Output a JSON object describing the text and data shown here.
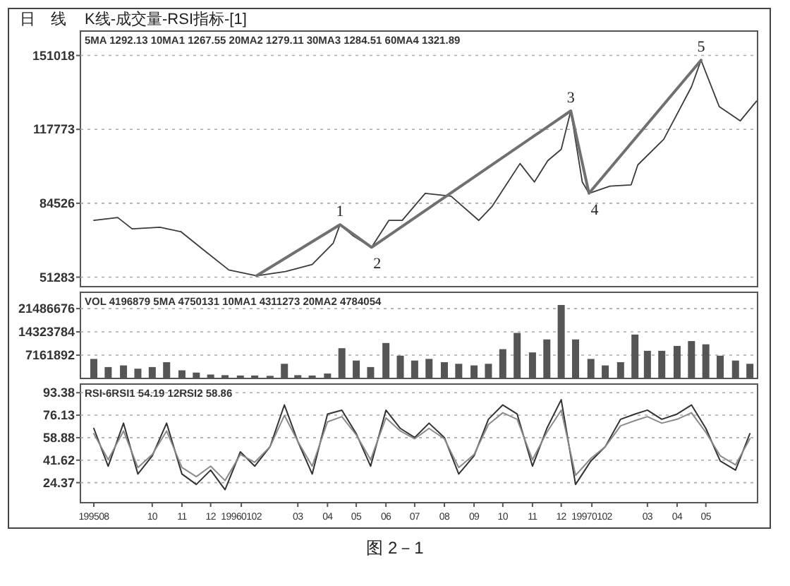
{
  "chart_data": [
    {
      "type": "line",
      "title": "日　线",
      "subtitle": "K线-成交量-RSI指标-[1]",
      "xlim": [
        "1995-07-18",
        "1997-06-24"
      ],
      "ylim": [
        47000,
        162000
      ],
      "yticks": [
        51283,
        84526,
        117773,
        151018
      ],
      "tick_labels": "y",
      "grid": "y",
      "series": [
        {
          "color": "#3a3a3a",
          "x": [
            "1995-08-01",
            "1995-08-26",
            "1995-09-10",
            "1995-10-09",
            "1995-10-31",
            "1995-11-22",
            "1995-12-20",
            "1996-01-18",
            "1996-02-17",
            "1996-03-16",
            "1996-04-07",
            "1996-04-14",
            "1996-04-28",
            "1996-05-17",
            "1996-06-04",
            "1996-06-18",
            "1996-07-12",
            "1996-08-08",
            "1996-09-06",
            "1996-09-20",
            "1996-10-19",
            "1996-11-03",
            "1996-11-17",
            "1996-12-01",
            "1996-12-11",
            "1996-12-23",
            "1996-12-30",
            "1997-01-21",
            "1997-02-12",
            "1997-02-19",
            "1997-03-18",
            "1997-04-16",
            "1997-04-26",
            "1997-05-15",
            "1997-06-06",
            "1997-06-23"
          ],
          "values": [
            76800,
            78100,
            73000,
            73700,
            71700,
            64100,
            54500,
            51900,
            53800,
            57000,
            66600,
            74900,
            69800,
            64700,
            76800,
            76800,
            89000,
            87700,
            76800,
            83200,
            102400,
            94100,
            103700,
            108800,
            126100,
            94100,
            89000,
            92200,
            92800,
            101800,
            113300,
            136900,
            148900,
            128000,
            121600,
            130500
          ]
        },
        {
          "color": "#707070",
          "x": [
            "1996-01-18",
            "1996-04-14",
            "1996-05-17",
            "1996-12-11",
            "1996-12-30",
            "1997-04-26"
          ],
          "values": [
            51900,
            74900,
            64700,
            126100,
            89000,
            148900
          ]
        }
      ],
      "annotations": [
        "5MA 1292.13  10MA1 1267.55  20MA2 1279.11  30MA3 1284.51  60MA4 1321.89",
        {
          "text": "1",
          "x": "1996-04-14",
          "y": 74900
        },
        {
          "text": "2",
          "x": "1996-05-17",
          "y": 64700
        },
        {
          "text": "3",
          "x": "1996-12-11",
          "y": 126100
        },
        {
          "text": "4",
          "x": "1996-12-30",
          "y": 89000
        },
        {
          "text": "5",
          "x": "1997-04-26",
          "y": 148900
        }
      ]
    },
    {
      "type": "bar",
      "xlim": [
        "1995-07-18",
        "1997-06-24"
      ],
      "ylim": [
        0,
        26500000
      ],
      "yticks": [
        7161892,
        14323784,
        21486676
      ],
      "tick_labels": "y",
      "grid": "y",
      "color": "#555555",
      "x": [
        "1995-08-01",
        "1995-08-16",
        "1995-09-01",
        "1995-09-16",
        "1995-10-01",
        "1995-10-16",
        "1995-11-01",
        "1995-11-16",
        "1995-12-01",
        "1995-12-16",
        "1996-01-01",
        "1996-01-16",
        "1996-02-01",
        "1996-02-16",
        "1996-03-01",
        "1996-03-16",
        "1996-04-01",
        "1996-04-16",
        "1996-05-01",
        "1996-05-16",
        "1996-06-01",
        "1996-06-16",
        "1996-07-01",
        "1996-07-16",
        "1996-08-01",
        "1996-08-16",
        "1996-09-01",
        "1996-09-16",
        "1996-10-01",
        "1996-10-16",
        "1996-11-01",
        "1996-11-16",
        "1996-12-01",
        "1996-12-16",
        "1997-01-01",
        "1997-01-16",
        "1997-02-01",
        "1997-02-16",
        "1997-03-01",
        "1997-03-16",
        "1997-04-01",
        "1997-04-16",
        "1997-05-01",
        "1997-05-16",
        "1997-06-01",
        "1997-06-16"
      ],
      "values": [
        6000000,
        3500000,
        4000000,
        3000000,
        3500000,
        5000000,
        2500000,
        1800000,
        1200000,
        1000000,
        900000,
        900000,
        800000,
        4500000,
        1000000,
        900000,
        1500000,
        9300000,
        5500000,
        3500000,
        10900000,
        7000000,
        5500000,
        6000000,
        5000000,
        4500000,
        4000000,
        4500000,
        9000000,
        14000000,
        8000000,
        12000000,
        22600000,
        12000000,
        6000000,
        4000000,
        5000000,
        13500000,
        8500000,
        8500000,
        10000000,
        11500000,
        10500000,
        7000000,
        5500000,
        4500000
      ],
      "annotations": [
        "VOL 4196879  5MA 4750131  10MA1 4311273  20MA2 4784054"
      ]
    },
    {
      "type": "line",
      "xlim": [
        "1995-07-18",
        "1997-06-24"
      ],
      "ylim": [
        9,
        100
      ],
      "yticks": [
        24.37,
        41.62,
        58.88,
        76.13,
        93.38
      ],
      "grid": "y",
      "xticks": [
        {
          "value": "1995-08-01",
          "label": "199508"
        },
        {
          "value": "1995-10-01",
          "label": "10"
        },
        {
          "value": "1995-11-01",
          "label": "11"
        },
        {
          "value": "1995-12-01",
          "label": "12"
        },
        {
          "value": "1996-01-02",
          "label": "19960102"
        },
        {
          "value": "1996-03-01",
          "label": "03"
        },
        {
          "value": "1996-04-01",
          "label": "04"
        },
        {
          "value": "1996-05-01",
          "label": "05"
        },
        {
          "value": "1996-06-01",
          "label": "06"
        },
        {
          "value": "1996-07-01",
          "label": "07"
        },
        {
          "value": "1996-08-01",
          "label": "08"
        },
        {
          "value": "1996-09-01",
          "label": "09"
        },
        {
          "value": "1996-10-01",
          "label": "10"
        },
        {
          "value": "1996-11-01",
          "label": "11"
        },
        {
          "value": "1996-12-01",
          "label": "12"
        },
        {
          "value": "1997-01-02",
          "label": "19970102"
        },
        {
          "value": "1997-03-01",
          "label": "03"
        },
        {
          "value": "1997-04-01",
          "label": "04"
        },
        {
          "value": "1997-05-01",
          "label": "05"
        }
      ],
      "x": [
        "1995-08-01",
        "1995-08-16",
        "1995-09-01",
        "1995-09-16",
        "1995-10-01",
        "1995-10-16",
        "1995-11-01",
        "1995-11-16",
        "1995-12-01",
        "1995-12-16",
        "1996-01-01",
        "1996-01-16",
        "1996-02-01",
        "1996-02-16",
        "1996-03-01",
        "1996-03-16",
        "1996-04-01",
        "1996-04-16",
        "1996-05-01",
        "1996-05-16",
        "1996-06-01",
        "1996-06-16",
        "1996-07-01",
        "1996-07-16",
        "1996-08-01",
        "1996-08-16",
        "1996-09-01",
        "1996-09-16",
        "1996-10-01",
        "1996-10-16",
        "1996-11-01",
        "1996-11-16",
        "1996-12-01",
        "1996-12-16",
        "1997-01-01",
        "1997-01-16",
        "1997-02-01",
        "1997-02-16",
        "1997-03-01",
        "1997-03-16",
        "1997-04-01",
        "1997-04-16",
        "1997-05-01",
        "1997-05-16",
        "1997-06-01",
        "1997-06-16"
      ],
      "series": [
        {
          "color": "#333333",
          "values": [
            66,
            37,
            70,
            31,
            45,
            70,
            31,
            23,
            34,
            19,
            48,
            37,
            52,
            84,
            56,
            31,
            77,
            80,
            62,
            37,
            80,
            66,
            59,
            70,
            59,
            31,
            45,
            73,
            84,
            77,
            37,
            66,
            88,
            23,
            41,
            52,
            73,
            77,
            80,
            73,
            77,
            84,
            66,
            41,
            34,
            62
          ]
        },
        {
          "color": "#8a8a8a",
          "values": [
            62,
            42,
            64,
            36,
            46,
            64,
            36,
            29,
            37,
            26,
            46,
            40,
            52,
            76,
            56,
            37,
            71,
            75,
            61,
            42,
            74,
            64,
            58,
            66,
            58,
            36,
            46,
            69,
            78,
            73,
            42,
            63,
            80,
            30,
            43,
            52,
            68,
            72,
            75,
            70,
            73,
            78,
            63,
            45,
            38,
            58
          ]
        }
      ],
      "annotations": [
        "RSI-6RSI1 54.19  12RSI2 58.86",
        "图 2－1"
      ]
    }
  ]
}
